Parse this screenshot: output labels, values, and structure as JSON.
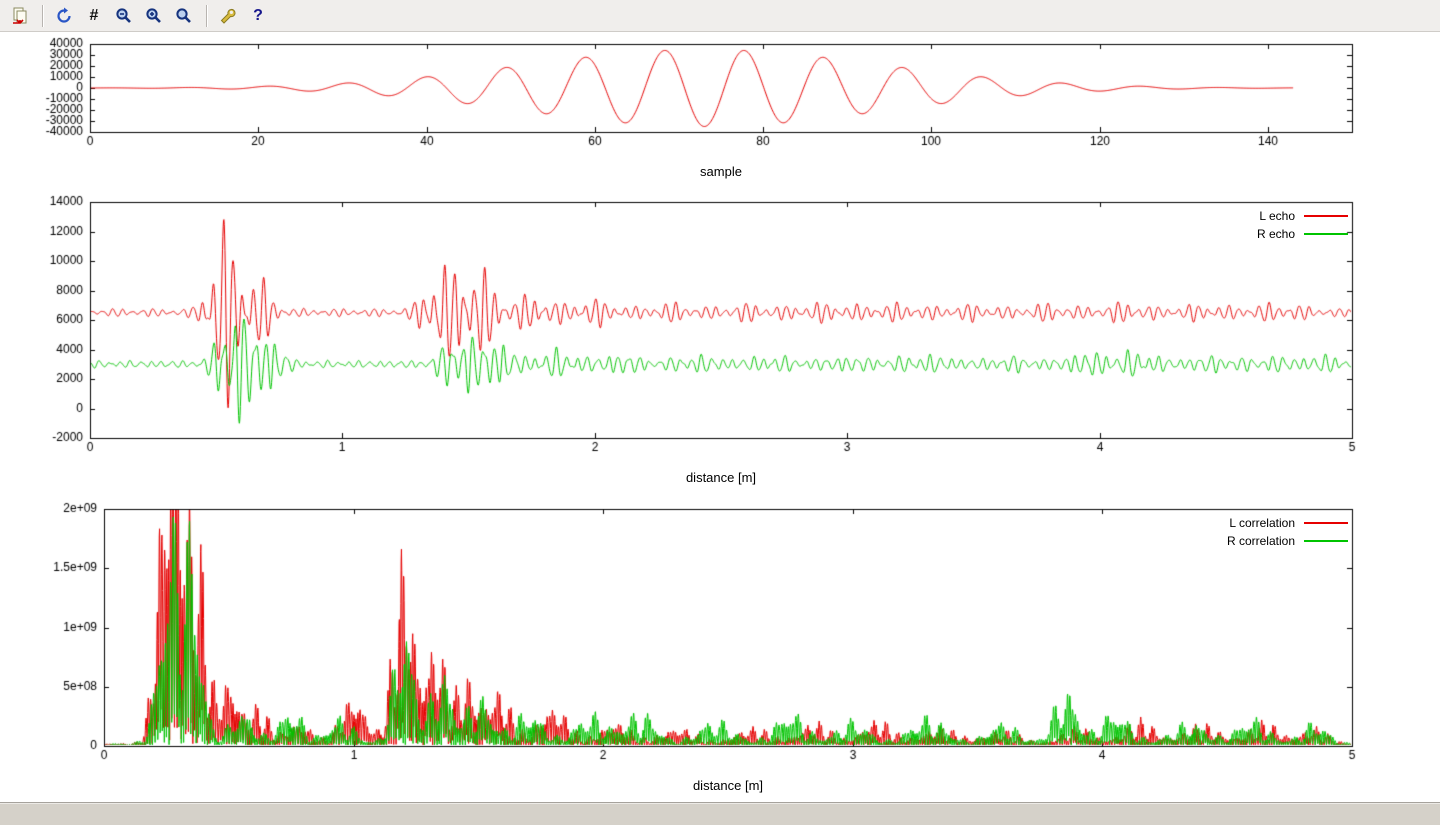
{
  "toolbar": {
    "glyphs": {
      "grid": "#",
      "help": "?"
    },
    "buttons": [
      "copy-to-clipboard",
      "replot",
      "toggle-grid",
      "zoom-previous",
      "zoom-next",
      "autoscale",
      "configure",
      "help"
    ]
  },
  "status_bar": {
    "text": ""
  },
  "chart_data": [
    {
      "type": "line",
      "title": "",
      "xlabel": "sample",
      "ylabel": "",
      "xlim": [
        0,
        150
      ],
      "ylim": [
        -40000,
        40000
      ],
      "grid": false,
      "legend_visible": false,
      "xticks": {
        "values": [
          0,
          20,
          40,
          60,
          80,
          100,
          120,
          140
        ],
        "labels": [
          "0",
          "20",
          "40",
          "60",
          "80",
          "100",
          "120",
          "140"
        ]
      },
      "yticks": {
        "values": [
          40000,
          30000,
          20000,
          10000,
          0,
          -10000,
          -20000,
          -30000,
          -40000
        ],
        "labels": [
          "40000",
          "30000",
          "20000",
          "10000",
          "0",
          "-10000",
          "-20000",
          "-30000",
          "-40000"
        ]
      },
      "series": [
        {
          "name": "",
          "color": "#e60000",
          "baseline": 0,
          "rectify": false,
          "xrange": [
            0,
            143
          ],
          "carrier": [
            {
              "f": 0.106,
              "a": 1.0,
              "p": 0.06
            }
          ],
          "bursts": [
            {
              "c": 73,
              "sigma": 21,
              "amp": 35000
            }
          ]
        }
      ]
    },
    {
      "type": "line",
      "title": "",
      "xlabel": "distance [m]",
      "ylabel": "",
      "xlim": [
        0,
        5
      ],
      "ylim": [
        -2000,
        14000
      ],
      "grid": false,
      "legend_visible": true,
      "legend_position": "top-right",
      "xticks": {
        "values": [
          0,
          1,
          2,
          3,
          4,
          5
        ],
        "labels": [
          "0",
          "1",
          "2",
          "3",
          "4",
          "5"
        ]
      },
      "yticks": {
        "values": [
          14000,
          12000,
          10000,
          8000,
          6000,
          4000,
          2000,
          0,
          -2000
        ],
        "labels": [
          "14000",
          "12000",
          "10000",
          "8000",
          "6000",
          "4000",
          "2000",
          "0",
          "-2000"
        ]
      },
      "series": [
        {
          "name": "L echo",
          "color": "#e60000",
          "baseline": 6500,
          "rectify": false,
          "xrange": [
            0,
            5
          ],
          "carrier": [
            {
              "f": 25.1,
              "a": 0.55,
              "p": 0.0
            },
            {
              "f": 31.9,
              "a": 0.2,
              "p": 1.7
            },
            {
              "f": 18.3,
              "a": 0.15,
              "p": 4.1
            },
            {
              "f": 44.7,
              "a": 0.1,
              "p": 2.6
            }
          ],
          "bursts": [
            {
              "c": 2.5,
              "sigma": 50,
              "amp": 300
            },
            {
              "c": 0.53,
              "sigma": 0.045,
              "amp": 6800
            },
            {
              "c": 0.66,
              "sigma": 0.05,
              "amp": 2500
            },
            {
              "c": 1.38,
              "sigma": 0.05,
              "amp": 3200
            },
            {
              "c": 1.52,
              "sigma": 0.06,
              "amp": 3700
            },
            {
              "c": 1.75,
              "sigma": 0.08,
              "amp": 1100
            },
            {
              "c": 2.0,
              "sigma": 0.07,
              "amp": 800
            },
            {
              "c": 2.3,
              "sigma": 0.08,
              "amp": 500
            },
            {
              "c": 2.6,
              "sigma": 0.08,
              "amp": 450
            },
            {
              "c": 2.9,
              "sigma": 0.1,
              "amp": 500
            },
            {
              "c": 3.2,
              "sigma": 0.1,
              "amp": 450
            },
            {
              "c": 3.5,
              "sigma": 0.08,
              "amp": 400
            },
            {
              "c": 3.8,
              "sigma": 0.08,
              "amp": 450
            },
            {
              "c": 4.1,
              "sigma": 0.08,
              "amp": 550
            },
            {
              "c": 4.4,
              "sigma": 0.08,
              "amp": 400
            },
            {
              "c": 4.7,
              "sigma": 0.1,
              "amp": 450
            }
          ]
        },
        {
          "name": "R echo",
          "color": "#00c400",
          "baseline": 3000,
          "rectify": false,
          "xrange": [
            0,
            5
          ],
          "carrier": [
            {
              "f": 24.3,
              "a": 0.55,
              "p": 2.2
            },
            {
              "f": 33.1,
              "a": 0.2,
              "p": 0.6
            },
            {
              "f": 17.7,
              "a": 0.15,
              "p": 3.3
            },
            {
              "f": 47.3,
              "a": 0.1,
              "p": 5.1
            }
          ],
          "bursts": [
            {
              "c": 2.5,
              "sigma": 50,
              "amp": 280
            },
            {
              "c": 0.57,
              "sigma": 0.05,
              "amp": 4800
            },
            {
              "c": 0.7,
              "sigma": 0.05,
              "amp": 2200
            },
            {
              "c": 1.47,
              "sigma": 0.06,
              "amp": 2400
            },
            {
              "c": 1.62,
              "sigma": 0.05,
              "amp": 1600
            },
            {
              "c": 1.85,
              "sigma": 0.07,
              "amp": 900
            },
            {
              "c": 2.1,
              "sigma": 0.07,
              "amp": 600
            },
            {
              "c": 2.4,
              "sigma": 0.08,
              "amp": 500
            },
            {
              "c": 2.7,
              "sigma": 0.08,
              "amp": 450
            },
            {
              "c": 3.0,
              "sigma": 0.08,
              "amp": 400
            },
            {
              "c": 3.3,
              "sigma": 0.1,
              "amp": 500
            },
            {
              "c": 3.65,
              "sigma": 0.08,
              "amp": 400
            },
            {
              "c": 3.95,
              "sigma": 0.07,
              "amp": 750
            },
            {
              "c": 4.15,
              "sigma": 0.07,
              "amp": 800
            },
            {
              "c": 4.45,
              "sigma": 0.08,
              "amp": 450
            },
            {
              "c": 4.7,
              "sigma": 0.08,
              "amp": 400
            },
            {
              "c": 4.9,
              "sigma": 0.05,
              "amp": 500
            }
          ]
        }
      ]
    },
    {
      "type": "line",
      "title": "",
      "xlabel": "distance [m]",
      "ylabel": "",
      "xlim": [
        0,
        5
      ],
      "ylim": [
        0,
        2000000000.0
      ],
      "grid": false,
      "legend_visible": true,
      "legend_position": "top-right",
      "xticks": {
        "values": [
          0,
          1,
          2,
          3,
          4,
          5
        ],
        "labels": [
          "0",
          "1",
          "2",
          "3",
          "4",
          "5"
        ]
      },
      "yticks": {
        "values": [
          2000000000.0,
          1500000000.0,
          1000000000.0,
          500000000.0,
          0
        ],
        "labels": [
          "2e+09",
          "1.5e+09",
          "1e+09",
          "5e+08",
          "0"
        ]
      },
      "series": [
        {
          "name": "L correlation",
          "color": "#e60000",
          "baseline": 0,
          "rectify": true,
          "xrange": [
            0,
            5
          ],
          "carrier": [
            {
              "f": 54.7,
              "a": 0.6,
              "p": 0.3
            },
            {
              "f": 36.1,
              "a": 0.25,
              "p": 2.0
            },
            {
              "f": 77.3,
              "a": 0.15,
              "p": 1.1
            }
          ],
          "bursts": [
            {
              "c": 2.5,
              "sigma": 50,
              "amp": 25000000.0
            },
            {
              "c": 0.24,
              "sigma": 0.035,
              "amp": 1900000000.0
            },
            {
              "c": 0.3,
              "sigma": 0.04,
              "amp": 2300000000.0
            },
            {
              "c": 0.38,
              "sigma": 0.035,
              "amp": 1600000000.0
            },
            {
              "c": 0.5,
              "sigma": 0.04,
              "amp": 600000000.0
            },
            {
              "c": 0.62,
              "sigma": 0.04,
              "amp": 350000000.0
            },
            {
              "c": 0.78,
              "sigma": 0.05,
              "amp": 200000000.0
            },
            {
              "c": 1.0,
              "sigma": 0.05,
              "amp": 450000000.0
            },
            {
              "c": 1.2,
              "sigma": 0.04,
              "amp": 1750000000.0
            },
            {
              "c": 1.33,
              "sigma": 0.04,
              "amp": 950000000.0
            },
            {
              "c": 1.45,
              "sigma": 0.04,
              "amp": 600000000.0
            },
            {
              "c": 1.58,
              "sigma": 0.05,
              "amp": 500000000.0
            },
            {
              "c": 1.8,
              "sigma": 0.06,
              "amp": 350000000.0
            },
            {
              "c": 2.05,
              "sigma": 0.06,
              "amp": 200000000.0
            },
            {
              "c": 2.3,
              "sigma": 0.07,
              "amp": 150000000.0
            },
            {
              "c": 2.6,
              "sigma": 0.07,
              "amp": 150000000.0
            },
            {
              "c": 2.85,
              "sigma": 0.06,
              "amp": 200000000.0
            },
            {
              "c": 3.1,
              "sigma": 0.06,
              "amp": 220000000.0
            },
            {
              "c": 3.35,
              "sigma": 0.07,
              "amp": 150000000.0
            },
            {
              "c": 3.6,
              "sigma": 0.07,
              "amp": 120000000.0
            },
            {
              "c": 3.9,
              "sigma": 0.06,
              "amp": 150000000.0
            },
            {
              "c": 4.15,
              "sigma": 0.06,
              "amp": 220000000.0
            },
            {
              "c": 4.4,
              "sigma": 0.07,
              "amp": 180000000.0
            },
            {
              "c": 4.65,
              "sigma": 0.06,
              "amp": 200000000.0
            },
            {
              "c": 4.85,
              "sigma": 0.05,
              "amp": 150000000.0
            }
          ]
        },
        {
          "name": "R correlation",
          "color": "#00c400",
          "baseline": 0,
          "rectify": true,
          "xrange": [
            0,
            5
          ],
          "carrier": [
            {
              "f": 52.3,
              "a": 0.6,
              "p": 1.9
            },
            {
              "f": 38.7,
              "a": 0.25,
              "p": 0.2
            },
            {
              "f": 71.9,
              "a": 0.15,
              "p": 4.4
            }
          ],
          "bursts": [
            {
              "c": 2.5,
              "sigma": 50,
              "amp": 25000000.0
            },
            {
              "c": 0.27,
              "sigma": 0.045,
              "amp": 1800000000.0
            },
            {
              "c": 0.35,
              "sigma": 0.04,
              "amp": 1500000000.0
            },
            {
              "c": 0.55,
              "sigma": 0.05,
              "amp": 300000000.0
            },
            {
              "c": 0.75,
              "sigma": 0.05,
              "amp": 320000000.0
            },
            {
              "c": 0.95,
              "sigma": 0.05,
              "amp": 250000000.0
            },
            {
              "c": 1.2,
              "sigma": 0.04,
              "amp": 1150000000.0
            },
            {
              "c": 1.35,
              "sigma": 0.04,
              "amp": 700000000.0
            },
            {
              "c": 1.5,
              "sigma": 0.05,
              "amp": 450000000.0
            },
            {
              "c": 1.7,
              "sigma": 0.06,
              "amp": 300000000.0
            },
            {
              "c": 1.95,
              "sigma": 0.06,
              "amp": 280000000.0
            },
            {
              "c": 2.15,
              "sigma": 0.06,
              "amp": 300000000.0
            },
            {
              "c": 2.45,
              "sigma": 0.07,
              "amp": 220000000.0
            },
            {
              "c": 2.75,
              "sigma": 0.06,
              "amp": 300000000.0
            },
            {
              "c": 3.0,
              "sigma": 0.06,
              "amp": 220000000.0
            },
            {
              "c": 3.3,
              "sigma": 0.07,
              "amp": 250000000.0
            },
            {
              "c": 3.6,
              "sigma": 0.06,
              "amp": 200000000.0
            },
            {
              "c": 3.85,
              "sigma": 0.045,
              "amp": 520000000.0
            },
            {
              "c": 4.05,
              "sigma": 0.06,
              "amp": 300000000.0
            },
            {
              "c": 4.35,
              "sigma": 0.07,
              "amp": 200000000.0
            },
            {
              "c": 4.6,
              "sigma": 0.06,
              "amp": 240000000.0
            },
            {
              "c": 4.85,
              "sigma": 0.05,
              "amp": 200000000.0
            }
          ]
        }
      ]
    }
  ]
}
